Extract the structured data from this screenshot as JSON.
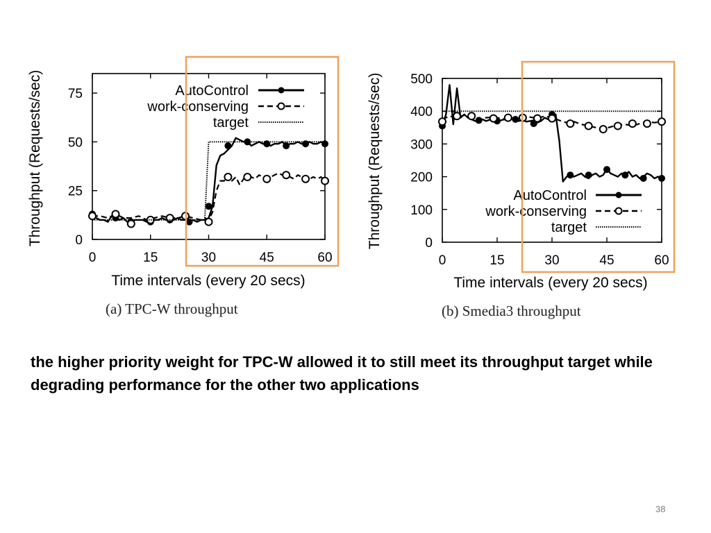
{
  "slide": {
    "text": "the higher priority weight for TPC-W allowed it to still meet its throughput target while degrading performance for the other two applications",
    "number": "38"
  },
  "highlight_color": "#f0a05a",
  "chart_data": [
    {
      "type": "line",
      "caption": "(a)  TPC-W throughput",
      "xlabel": "Time intervals (every 20 secs)",
      "ylabel": "Throughput (Requests/sec)",
      "xlim": [
        0,
        60
      ],
      "ylim": [
        0,
        85
      ],
      "xticks": [
        "0",
        "15",
        "30",
        "45",
        "60"
      ],
      "yticks": [
        "0",
        "25",
        "50",
        "75"
      ],
      "legend_position": "top-right",
      "highlight_x": [
        24,
        63
      ],
      "series": [
        {
          "name": "AutoControl",
          "style": "solid-filled-markers",
          "x": [
            0,
            1,
            2,
            3,
            4,
            5,
            6,
            7,
            8,
            9,
            10,
            11,
            12,
            13,
            14,
            15,
            16,
            17,
            18,
            19,
            20,
            21,
            22,
            23,
            24,
            25,
            26,
            27,
            28,
            29,
            30,
            31,
            32,
            33,
            34,
            35,
            36,
            37,
            38,
            39,
            40,
            41,
            42,
            43,
            44,
            45,
            46,
            47,
            48,
            49,
            50,
            51,
            52,
            53,
            54,
            55,
            56,
            57,
            58,
            59,
            60
          ],
          "y": [
            13,
            11,
            10,
            10,
            9,
            12,
            11,
            10,
            11,
            9,
            9,
            10,
            10,
            10,
            9,
            9,
            10,
            10,
            11,
            10,
            11,
            10,
            11,
            10,
            10,
            9,
            10,
            9,
            10,
            10,
            11,
            17,
            38,
            43,
            44,
            46,
            48,
            52,
            51,
            50,
            50,
            48,
            49,
            50,
            49,
            49,
            48,
            49,
            49,
            50,
            48,
            49,
            49,
            50,
            49,
            49,
            50,
            49,
            49,
            50,
            49
          ],
          "markers": [
            [
              0,
              13
            ],
            [
              6,
              11
            ],
            [
              10,
              9
            ],
            [
              15,
              9
            ],
            [
              20,
              10
            ],
            [
              25,
              9
            ],
            [
              30,
              17
            ],
            [
              35,
              48
            ],
            [
              40,
              50
            ],
            [
              45,
              49
            ],
            [
              50,
              48
            ],
            [
              55,
              49
            ],
            [
              60,
              49
            ]
          ]
        },
        {
          "name": "work-conserving",
          "style": "dashed-open-markers",
          "x": [
            0,
            2,
            4,
            6,
            8,
            10,
            12,
            14,
            16,
            18,
            20,
            22,
            24,
            26,
            28,
            29,
            30,
            31,
            32,
            33,
            34,
            35,
            36,
            37,
            38,
            39,
            40,
            41,
            42,
            43,
            44,
            45,
            46,
            47,
            48,
            49,
            50,
            51,
            52,
            53,
            54,
            55,
            56,
            57,
            58,
            59,
            60
          ],
          "y": [
            12,
            12,
            11,
            13,
            11,
            11,
            12,
            10,
            11,
            12,
            11,
            11,
            12,
            11,
            10,
            11,
            10,
            14,
            25,
            30,
            30,
            33,
            30,
            32,
            28,
            31,
            32,
            32,
            31,
            33,
            32,
            31,
            32,
            33,
            34,
            33,
            32,
            32,
            31,
            33,
            32,
            30,
            31,
            32,
            31,
            32,
            30
          ],
          "markers": [
            [
              0,
              12
            ],
            [
              6,
              13
            ],
            [
              10,
              8
            ],
            [
              15,
              10
            ],
            [
              20,
              11
            ],
            [
              24,
              12
            ],
            [
              30,
              9
            ],
            [
              35,
              32
            ],
            [
              40,
              32
            ],
            [
              45,
              31
            ],
            [
              50,
              33
            ],
            [
              55,
              31
            ],
            [
              60,
              30
            ]
          ]
        },
        {
          "name": "target",
          "style": "dotted",
          "x": [
            0,
            29,
            30,
            60
          ],
          "y": [
            10,
            10,
            50,
            50
          ]
        }
      ]
    },
    {
      "type": "line",
      "caption": "(b)  Smedia3 throughput",
      "xlabel": "Time intervals (every 20 secs)",
      "ylabel": "Throughput (Requests/sec)",
      "xlim": [
        0,
        60
      ],
      "ylim": [
        0,
        500
      ],
      "xticks": [
        "0",
        "15",
        "30",
        "45",
        "60"
      ],
      "yticks": [
        "0",
        "100",
        "200",
        "300",
        "400",
        "500"
      ],
      "legend_position": "bottom-right",
      "highlight_x": [
        21,
        63
      ],
      "series": [
        {
          "name": "AutoControl",
          "style": "solid-filled-markers",
          "x": [
            0,
            1,
            2,
            3,
            4,
            5,
            6,
            7,
            8,
            9,
            10,
            11,
            12,
            13,
            14,
            15,
            16,
            17,
            18,
            19,
            20,
            21,
            22,
            23,
            24,
            25,
            26,
            27,
            28,
            29,
            30,
            31,
            32,
            33,
            34,
            35,
            36,
            37,
            38,
            39,
            40,
            41,
            42,
            43,
            44,
            45,
            46,
            47,
            48,
            49,
            50,
            51,
            52,
            53,
            54,
            55,
            56,
            57,
            58,
            59,
            60
          ],
          "y": [
            355,
            390,
            480,
            360,
            470,
            380,
            390,
            380,
            375,
            370,
            372,
            375,
            370,
            374,
            372,
            370,
            372,
            375,
            370,
            378,
            372,
            370,
            374,
            368,
            370,
            372,
            365,
            370,
            380,
            375,
            385,
            390,
            310,
            185,
            200,
            205,
            200,
            205,
            210,
            200,
            195,
            205,
            210,
            200,
            205,
            225,
            210,
            205,
            200,
            210,
            205,
            215,
            200,
            205,
            195,
            200,
            210,
            205,
            195,
            200,
            195
          ],
          "markers": [
            [
              0,
              355
            ],
            [
              10,
              372
            ],
            [
              15,
              370
            ],
            [
              20,
              375
            ],
            [
              25,
              362
            ],
            [
              30,
              390
            ],
            [
              35,
              205
            ],
            [
              40,
              205
            ],
            [
              45,
              222
            ],
            [
              50,
              205
            ],
            [
              55,
              195
            ],
            [
              60,
              195
            ]
          ]
        },
        {
          "name": "work-conserving",
          "style": "dashed-open-markers",
          "x": [
            0,
            2,
            4,
            6,
            8,
            10,
            12,
            14,
            16,
            18,
            20,
            22,
            24,
            26,
            28,
            30,
            32,
            34,
            36,
            38,
            40,
            42,
            44,
            46,
            48,
            50,
            52,
            54,
            56,
            58,
            60
          ],
          "y": [
            375,
            385,
            380,
            388,
            378,
            375,
            380,
            382,
            378,
            375,
            380,
            376,
            382,
            378,
            385,
            380,
            372,
            365,
            368,
            360,
            355,
            350,
            345,
            352,
            358,
            360,
            355,
            362,
            368,
            365,
            368
          ],
          "markers": [
            [
              0,
              368
            ],
            [
              4,
              385
            ],
            [
              8,
              385
            ],
            [
              14,
              378
            ],
            [
              18,
              380
            ],
            [
              22,
              380
            ],
            [
              26,
              378
            ],
            [
              30,
              378
            ],
            [
              35,
              362
            ],
            [
              40,
              355
            ],
            [
              44,
              345
            ],
            [
              48,
              355
            ],
            [
              52,
              362
            ],
            [
              56,
              362
            ],
            [
              60,
              368
            ]
          ]
        },
        {
          "name": "target",
          "style": "dotted",
          "x": [
            0,
            60
          ],
          "y": [
            400,
            400
          ]
        }
      ]
    }
  ]
}
